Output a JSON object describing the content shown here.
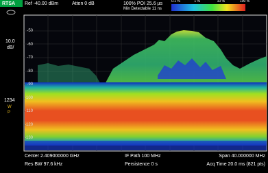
{
  "header": {
    "mode": "RTSA",
    "ref": "Ref -40.00 dBm",
    "atten": "Atten 0 dB",
    "poi": "100% POI 25.6 µs",
    "min_detectable": "Min Detectable 11 ns",
    "legend": [
      "0.1 %",
      "1 %",
      "10 %",
      "100 %"
    ]
  },
  "sidebar": {
    "scale": "10.0",
    "scale_unit": "dB/",
    "trace_number": "1234",
    "markers": [
      "W",
      "P"
    ]
  },
  "y_axis_labels": [
    "-50",
    "-60",
    "-70",
    "-80",
    "-90",
    "-100",
    "-110",
    "-120",
    "-130"
  ],
  "footer": {
    "center": "Center 2.409000000 GHz",
    "if_path": "IF Path 100 MHz",
    "span": "Span 40.000000 MHz",
    "res_bw": "Res BW 97.6 kHz",
    "persistence": "Persistence 0 s",
    "acq_time": "Acq Time 20.0 ms (821 pts)"
  }
}
